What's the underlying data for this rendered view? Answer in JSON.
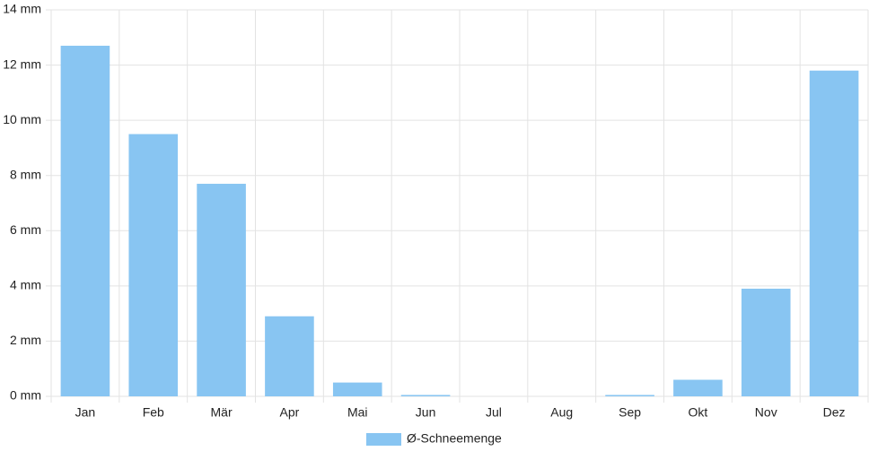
{
  "chart_data": {
    "type": "bar",
    "categories": [
      "Jan",
      "Feb",
      "Mär",
      "Apr",
      "Mai",
      "Jun",
      "Jul",
      "Aug",
      "Sep",
      "Okt",
      "Nov",
      "Dez"
    ],
    "series": [
      {
        "name": "Ø-Schneemenge",
        "color": "#88c5f2",
        "values": [
          12.7,
          9.5,
          7.7,
          2.9,
          0.5,
          0.05,
          0,
          0,
          0.05,
          0.6,
          3.9,
          11.8
        ]
      }
    ],
    "ylim": [
      0,
      14
    ],
    "yticks": [
      {
        "value": 0,
        "label": "0 mm"
      },
      {
        "value": 2,
        "label": "2 mm"
      },
      {
        "value": 4,
        "label": "4 mm"
      },
      {
        "value": 6,
        "label": "6 mm"
      },
      {
        "value": 8,
        "label": "8 mm"
      },
      {
        "value": 10,
        "label": "10 mm"
      },
      {
        "value": 12,
        "label": "12 mm"
      },
      {
        "value": 14,
        "label": "14 mm"
      }
    ],
    "grid": true,
    "legend": "bottom"
  }
}
